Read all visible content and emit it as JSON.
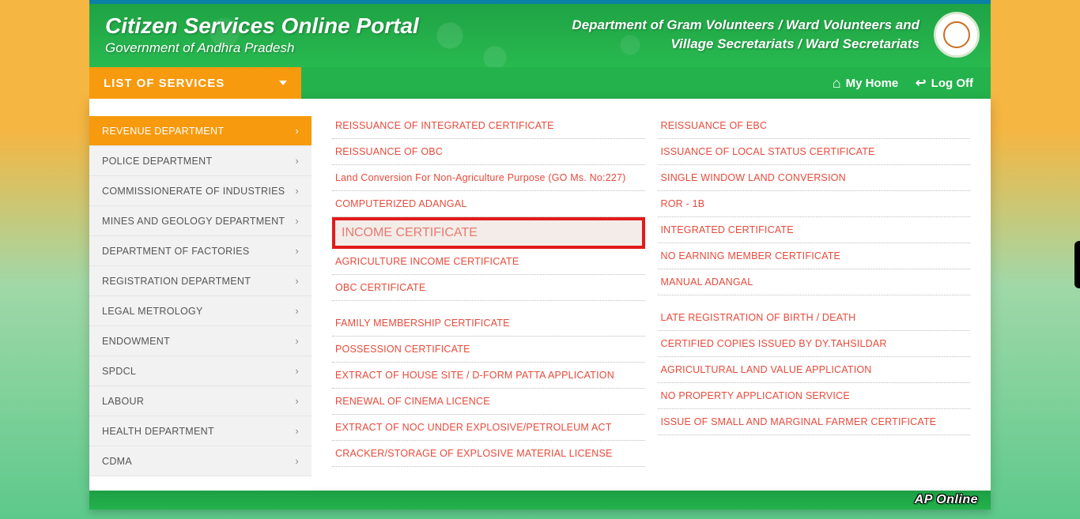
{
  "header": {
    "title": "Citizen Services Online Portal",
    "subtitle": "Government of Andhra Pradesh",
    "right_line1": "Department of Gram Volunteers / Ward Volunteers and",
    "right_line2": "Village Secretariats / Ward Secretariats"
  },
  "nav": {
    "list_label": "LIST OF SERVICES",
    "myhome": "My Home",
    "logoff": "Log Off"
  },
  "sidebar": {
    "items": [
      {
        "label": "REVENUE DEPARTMENT",
        "active": true
      },
      {
        "label": "POLICE DEPARTMENT",
        "active": false
      },
      {
        "label": "COMMISSIONERATE OF INDUSTRIES",
        "active": false
      },
      {
        "label": "MINES AND GEOLOGY DEPARTMENT",
        "active": false
      },
      {
        "label": "DEPARTMENT OF FACTORIES",
        "active": false
      },
      {
        "label": "REGISTRATION DEPARTMENT",
        "active": false
      },
      {
        "label": "LEGAL METROLOGY",
        "active": false
      },
      {
        "label": "ENDOWMENT",
        "active": false
      },
      {
        "label": "SPDCL",
        "active": false
      },
      {
        "label": "LABOUR",
        "active": false
      },
      {
        "label": "HEALTH DEPARTMENT",
        "active": false
      },
      {
        "label": "CDMA",
        "active": false
      }
    ]
  },
  "services": {
    "left": [
      {
        "label": "REISSUANCE OF INTEGRATED CERTIFICATE",
        "group": 1
      },
      {
        "label": "REISSUANCE OF OBC",
        "group": 1
      },
      {
        "label": "Land Conversion For Non-Agriculture Purpose (GO Ms. No:227)",
        "group": 1
      },
      {
        "label": "COMPUTERIZED ADANGAL",
        "group": 1
      },
      {
        "label": "INCOME CERTIFICATE",
        "group": 1,
        "highlight": true
      },
      {
        "label": "AGRICULTURE INCOME CERTIFICATE",
        "group": 1
      },
      {
        "label": "OBC CERTIFICATE",
        "group": 1
      },
      {
        "label": "FAMILY MEMBERSHIP CERTIFICATE",
        "group": 2
      },
      {
        "label": "POSSESSION CERTIFICATE",
        "group": 2
      },
      {
        "label": "EXTRACT OF HOUSE SITE / D-FORM PATTA APPLICATION",
        "group": 2
      },
      {
        "label": "RENEWAL OF CINEMA LICENCE",
        "group": 2
      },
      {
        "label": "EXTRACT OF NOC UNDER EXPLOSIVE/PETROLEUM ACT",
        "group": 2
      },
      {
        "label": "CRACKER/STORAGE OF EXPLOSIVE MATERIAL LICENSE",
        "group": 2
      }
    ],
    "right": [
      {
        "label": "REISSUANCE OF EBC",
        "group": 1
      },
      {
        "label": "ISSUANCE OF LOCAL STATUS CERTIFICATE",
        "group": 1
      },
      {
        "label": "SINGLE WINDOW LAND CONVERSION",
        "group": 1
      },
      {
        "label": "ROR - 1B",
        "group": 1
      },
      {
        "label": "INTEGRATED CERTIFICATE",
        "group": 1
      },
      {
        "label": "NO EARNING MEMBER CERTIFICATE",
        "group": 1
      },
      {
        "label": "MANUAL ADANGAL",
        "group": 1
      },
      {
        "label": "LATE REGISTRATION OF BIRTH / DEATH",
        "group": 2
      },
      {
        "label": "CERTIFIED COPIES ISSUED BY DY.TAHSILDAR",
        "group": 2
      },
      {
        "label": "AGRICULTURAL LAND VALUE APPLICATION",
        "group": 2
      },
      {
        "label": "NO PROPERTY APPLICATION SERVICE",
        "group": 2
      },
      {
        "label": "ISSUE OF SMALL AND MARGINAL FARMER CERTIFICATE",
        "group": 2
      }
    ]
  },
  "footer": {
    "brand": "AP Online"
  },
  "colors": {
    "accent_orange": "#f79a0e",
    "link_red": "#e84a3b",
    "highlight_border": "#e11b1b",
    "green_primary": "#24b24c"
  }
}
